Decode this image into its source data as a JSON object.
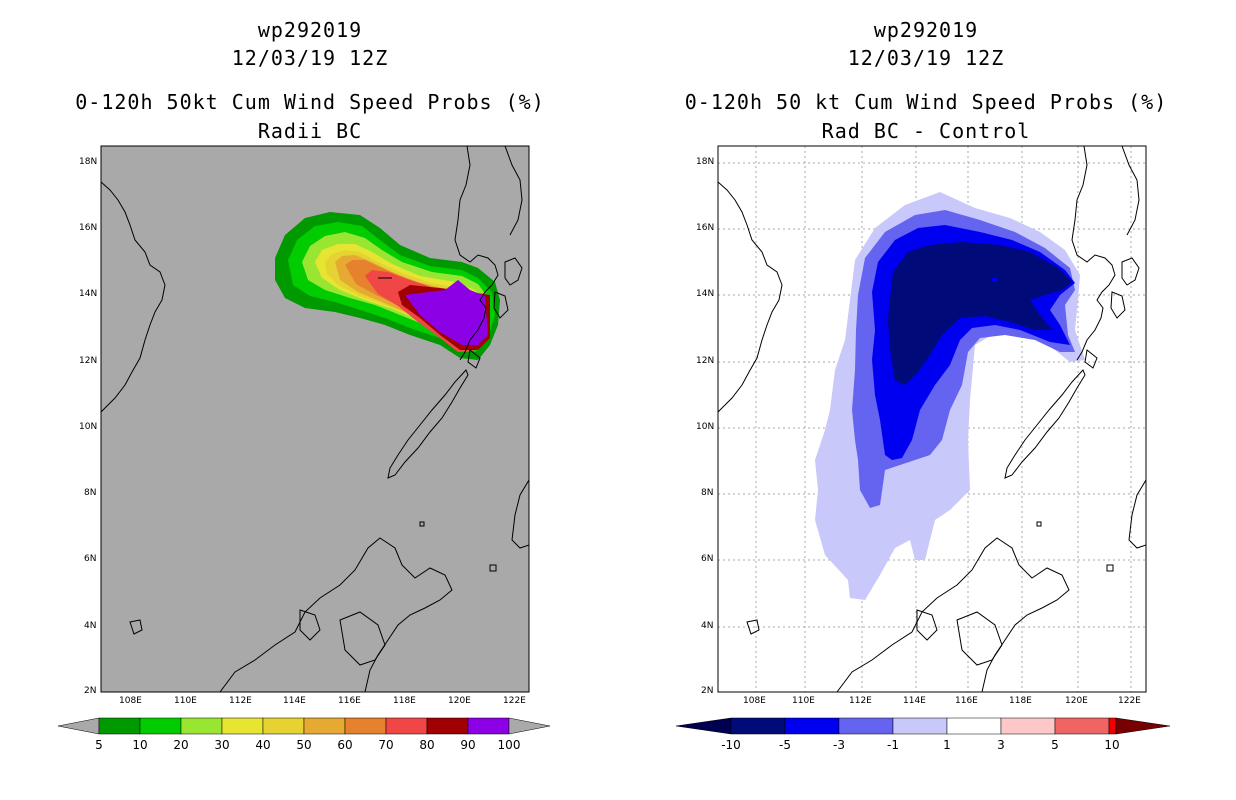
{
  "left_panel": {
    "title_line1": "wp292019",
    "title_line2": "12/03/19 12Z",
    "title_line3": "0-120h 50kt Cum Wind Speed Probs (%)",
    "title_line4": "Radii BC",
    "colorbar": {
      "labels": [
        "5",
        "10",
        "20",
        "30",
        "40",
        "50",
        "60",
        "70",
        "80",
        "90",
        "100"
      ],
      "colors": [
        "#009900",
        "#00cc00",
        "#99e632",
        "#e6e632",
        "#e6d232",
        "#e6aa32",
        "#e6822d",
        "#f04646",
        "#a00000",
        "#8c00e6"
      ]
    },
    "background_color": "#a9a9a9"
  },
  "right_panel": {
    "title_line1": "wp292019",
    "title_line2": "12/03/19 12Z",
    "title_line3": "0-120h 50 kt Cum Wind Speed Probs (%)",
    "title_line4": "Rad BC - Control",
    "colorbar": {
      "labels": [
        "-10",
        "-5",
        "-3",
        "-1",
        "1",
        "3",
        "5",
        "10"
      ],
      "colors": [
        "#000a78",
        "#0000f0",
        "#6464f0",
        "#c8c8fa",
        "#ffffff",
        "#ffc8c8",
        "#f06464",
        "#f00000"
      ],
      "end_low": "#000050",
      "end_high": "#780000"
    },
    "background_color": "#ffffff"
  },
  "axes": {
    "lat_labels": [
      "18N",
      "16N",
      "14N",
      "12N",
      "10N",
      "8N",
      "6N",
      "4N",
      "2N"
    ],
    "lon_labels": [
      "108E",
      "110E",
      "112E",
      "114E",
      "116E",
      "118E",
      "120E",
      "122E"
    ],
    "lon_range": [
      107,
      122
    ],
    "lat_range": [
      2,
      18.5
    ]
  }
}
